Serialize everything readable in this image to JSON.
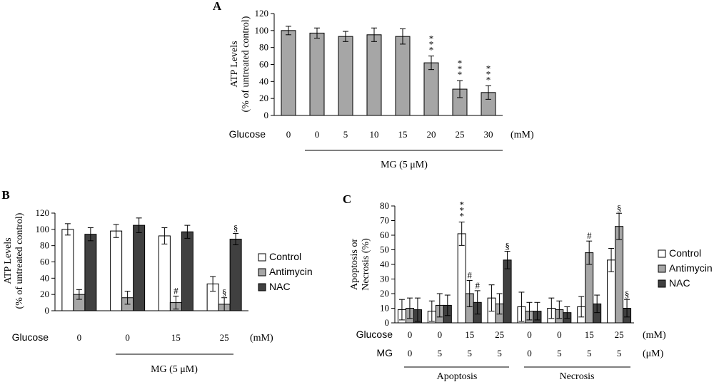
{
  "chart_data": [
    {
      "panel": "A",
      "type": "bar",
      "ylabel_line1": "ATP Levels",
      "ylabel_line2": "(% of untreated control)",
      "ylim": [
        0,
        120
      ],
      "yticks": [
        0,
        20,
        40,
        60,
        80,
        100,
        120
      ],
      "row_label": "Glucose",
      "categories": [
        "0",
        "0",
        "5",
        "10",
        "15",
        "20",
        "25",
        "30"
      ],
      "unit": "(mM)",
      "group_label": "MG (5 μM)",
      "series": [
        {
          "values": [
            100,
            97,
            93,
            95,
            93,
            62,
            31,
            27
          ],
          "errors": [
            5,
            6,
            6,
            8,
            9,
            8,
            10,
            8
          ]
        }
      ],
      "annotations": [
        "",
        "",
        "",
        "",
        "",
        "***",
        "***",
        "***"
      ],
      "colors": [
        "#a6a6a6"
      ]
    },
    {
      "panel": "B",
      "type": "bar",
      "ylabel_line1": "ATP Levels",
      "ylabel_line2": "(% of untreated control)",
      "ylim": [
        0,
        120
      ],
      "yticks": [
        0,
        20,
        40,
        60,
        80,
        100,
        120
      ],
      "row_label": "Glucose",
      "categories": [
        "0",
        "0",
        "15",
        "25"
      ],
      "unit": "(mM)",
      "group_label": "MG (5 μM)",
      "series": [
        {
          "name": "Control",
          "values": [
            100,
            98,
            92,
            33
          ],
          "errors": [
            7,
            8,
            10,
            9
          ]
        },
        {
          "name": "Antimycin",
          "values": [
            20,
            16,
            10,
            8
          ],
          "errors": [
            6,
            8,
            8,
            8
          ]
        },
        {
          "name": "NAC",
          "values": [
            94,
            105,
            97,
            88
          ],
          "errors": [
            8,
            9,
            8,
            7
          ]
        }
      ],
      "annotations": [
        {
          "category": 2,
          "series": 1,
          "text": "#"
        },
        {
          "category": 3,
          "series": 1,
          "text": "§"
        },
        {
          "category": 3,
          "series": 2,
          "text": "§"
        }
      ],
      "colors": [
        "#ffffff",
        "#a6a6a6",
        "#404040"
      ]
    },
    {
      "panel": "C",
      "type": "bar",
      "ylabel_line1": "Apoptosis or",
      "ylabel_line2": "Necrosis (%)",
      "ylim": [
        0,
        80
      ],
      "yticks": [
        0,
        10,
        20,
        30,
        40,
        50,
        60,
        70,
        80
      ],
      "row1_label": "Glucose",
      "row2_label": "MG",
      "glucose": [
        "0",
        "0",
        "15",
        "25",
        "0",
        "0",
        "15",
        "25"
      ],
      "mg": [
        "0",
        "5",
        "5",
        "5",
        "0",
        "5",
        "5",
        "5"
      ],
      "unit1": "(mM)",
      "unit2": "(μM)",
      "group_labels": [
        "Apoptosis",
        "Necrosis"
      ],
      "series": [
        {
          "name": "Control",
          "values": [
            9,
            8,
            61,
            17,
            11,
            10,
            11,
            43
          ],
          "errors": [
            7,
            7,
            8,
            9,
            10,
            7,
            7,
            8
          ]
        },
        {
          "name": "Antimycin",
          "values": [
            10,
            12,
            20,
            13,
            8,
            9,
            48,
            66
          ],
          "errors": [
            7,
            8,
            9,
            7,
            6,
            6,
            8,
            9
          ]
        },
        {
          "name": "NAC",
          "values": [
            9,
            12,
            14,
            43,
            8,
            7,
            13,
            10
          ],
          "errors": [
            8,
            7,
            8,
            6,
            6,
            4,
            6,
            6
          ]
        }
      ],
      "annotations": [
        {
          "category": 2,
          "series": 0,
          "text": "***"
        },
        {
          "category": 2,
          "series": 1,
          "text": "#"
        },
        {
          "category": 2,
          "series": 2,
          "text": "#"
        },
        {
          "category": 3,
          "series": 2,
          "text": "§"
        },
        {
          "category": 6,
          "series": 1,
          "text": "#"
        },
        {
          "category": 7,
          "series": 1,
          "text": "§"
        },
        {
          "category": 7,
          "series": 2,
          "text": "§"
        }
      ],
      "colors": [
        "#ffffff",
        "#a6a6a6",
        "#404040"
      ]
    }
  ]
}
